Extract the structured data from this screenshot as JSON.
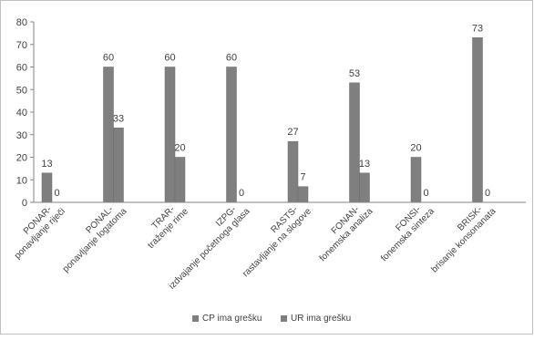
{
  "chart_data": {
    "type": "bar",
    "categories": [
      [
        "PONAR-",
        "ponavljanje riječi"
      ],
      [
        "PONAL-",
        "ponavljanje logatoma"
      ],
      [
        "TRAR-",
        "traženje rime"
      ],
      [
        "IZPG-",
        "izdvajanje početnoga glasa"
      ],
      [
        "RASTS-",
        "rastavljanje na slogove"
      ],
      [
        "FONAN-",
        "fonemska analiza"
      ],
      [
        "FONSI-",
        "fonemska sinteza"
      ],
      [
        "BRISK-",
        "brisanje konsonanata"
      ]
    ],
    "series": [
      {
        "name": "CP ima grešku",
        "values": [
          13,
          60,
          60,
          60,
          27,
          53,
          20,
          73
        ],
        "color": "#7f7f7f"
      },
      {
        "name": "UR ima grešku",
        "values": [
          0,
          33,
          20,
          0,
          7,
          13,
          0,
          0
        ],
        "color": "#7f7f7f"
      }
    ],
    "yticks": [
      0,
      10,
      20,
      30,
      40,
      50,
      60,
      70,
      80
    ],
    "ylim": [
      0,
      80
    ],
    "legend_position": "bottom",
    "grid": false,
    "title": "",
    "xlabel": "",
    "ylabel": ""
  }
}
